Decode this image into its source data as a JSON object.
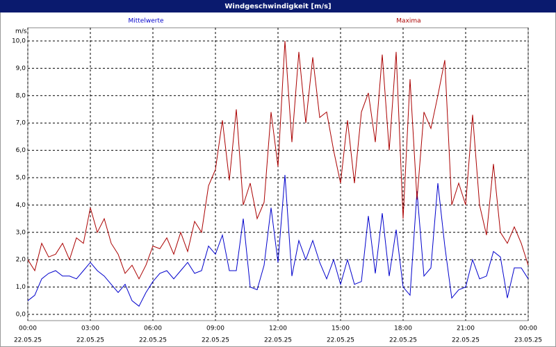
{
  "chart_data": {
    "type": "line",
    "title": "Windgeschwindigkeit [m/s]",
    "y_label": "m/s",
    "x": [
      0,
      20,
      40,
      60,
      80,
      100,
      120,
      140,
      160,
      180,
      200,
      220,
      240,
      260,
      280,
      300,
      320,
      340,
      360,
      380,
      400,
      420,
      440,
      460,
      480,
      500,
      520,
      540,
      560,
      580,
      600,
      620,
      640,
      660,
      680,
      700,
      720,
      740,
      760,
      780,
      800,
      820,
      840,
      860,
      880,
      900,
      920,
      940,
      960,
      980,
      1000,
      1020,
      1040,
      1060,
      1080,
      1100,
      1120,
      1140,
      1160,
      1180,
      1200,
      1220,
      1240,
      1260,
      1280,
      1300,
      1320,
      1340,
      1360,
      1380,
      1400,
      1420,
      1440
    ],
    "series": [
      {
        "name": "Mittelwerte",
        "color": "#0000cc",
        "values": [
          0.5,
          0.7,
          1.3,
          1.5,
          1.6,
          1.4,
          1.4,
          1.3,
          1.6,
          1.9,
          1.6,
          1.4,
          1.1,
          0.8,
          1.1,
          0.5,
          0.3,
          0.8,
          1.2,
          1.5,
          1.6,
          1.3,
          1.6,
          1.9,
          1.5,
          1.6,
          2.5,
          2.2,
          2.9,
          1.6,
          1.6,
          3.5,
          1.0,
          0.9,
          1.8,
          3.9,
          1.9,
          5.1,
          1.4,
          2.7,
          2.0,
          2.7,
          1.9,
          1.3,
          2.0,
          1.1,
          2.0,
          1.1,
          1.2,
          3.6,
          1.5,
          3.7,
          1.4,
          3.1,
          1.0,
          0.7,
          4.5,
          1.4,
          1.7,
          4.8,
          2.5,
          0.6,
          0.9,
          1.0,
          2.0,
          1.3,
          1.4,
          2.3,
          2.1,
          0.6,
          1.7,
          1.7,
          1.3
        ]
      },
      {
        "name": "Maxima",
        "color": "#aa0000",
        "values": [
          2.0,
          1.6,
          2.6,
          2.1,
          2.2,
          2.6,
          2.0,
          2.8,
          2.6,
          3.9,
          3.0,
          3.5,
          2.6,
          2.2,
          1.5,
          1.8,
          1.3,
          1.8,
          2.5,
          2.4,
          2.8,
          2.2,
          3.0,
          2.3,
          3.4,
          3.0,
          4.7,
          5.3,
          7.1,
          4.9,
          7.5,
          4.0,
          4.8,
          3.5,
          4.1,
          7.4,
          5.4,
          10.0,
          6.3,
          9.6,
          7.0,
          9.4,
          7.2,
          7.4,
          6.0,
          4.8,
          7.1,
          4.8,
          7.4,
          8.1,
          6.3,
          9.5,
          6.0,
          9.6,
          3.5,
          8.6,
          4.2,
          7.4,
          6.8,
          8.0,
          9.3,
          4.0,
          4.8,
          4.0,
          7.3,
          4.0,
          2.9,
          5.5,
          3.0,
          2.6,
          3.2,
          2.6,
          1.8
        ]
      }
    ],
    "xlim": [
      0,
      1440
    ],
    "xticks": [
      {
        "value": 0,
        "label": "00:00",
        "date": "22.05.25"
      },
      {
        "value": 180,
        "label": "03:00",
        "date": "22.05.25"
      },
      {
        "value": 360,
        "label": "06:00",
        "date": "22.05.25"
      },
      {
        "value": 540,
        "label": "09:00",
        "date": "22.05.25"
      },
      {
        "value": 720,
        "label": "12:00",
        "date": "22.05.25"
      },
      {
        "value": 900,
        "label": "15:00",
        "date": "22.05.25"
      },
      {
        "value": 1080,
        "label": "18:00",
        "date": "22.05.25"
      },
      {
        "value": 1260,
        "label": "21:00",
        "date": "22.05.25"
      },
      {
        "value": 1440,
        "label": "00:00",
        "date": "23.05.25"
      }
    ],
    "ylim": [
      0,
      10
    ],
    "yticks": [
      {
        "value": 0,
        "label": "0,0"
      },
      {
        "value": 1,
        "label": "1,0"
      },
      {
        "value": 2,
        "label": "2,0"
      },
      {
        "value": 3,
        "label": "3,0"
      },
      {
        "value": 4,
        "label": "4,0"
      },
      {
        "value": 5,
        "label": "5,0"
      },
      {
        "value": 6,
        "label": "6,0"
      },
      {
        "value": 7,
        "label": "7,0"
      },
      {
        "value": 8,
        "label": "8,0"
      },
      {
        "value": 9,
        "label": "9,0"
      },
      {
        "value": 10,
        "label": "10,0"
      }
    ],
    "grid": true
  }
}
